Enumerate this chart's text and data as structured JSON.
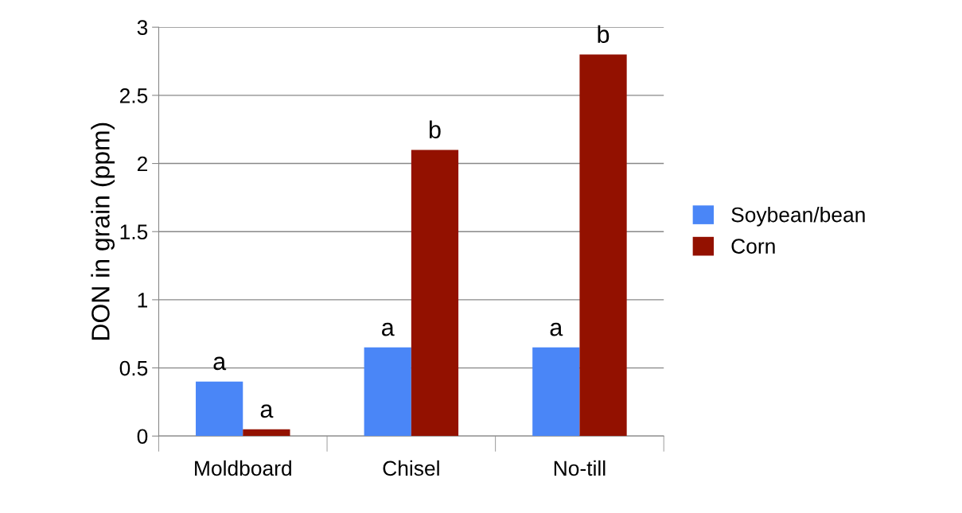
{
  "chart_data": {
    "type": "bar",
    "ylabel": "DON in grain (ppm)",
    "categories": [
      "Moldboard",
      "Chisel",
      "No-till"
    ],
    "series": [
      {
        "name": "Soybean/bean",
        "color": "#4a86f7",
        "values": [
          0.4,
          0.65,
          0.65
        ],
        "value_labels": [
          "a",
          "a",
          "a"
        ]
      },
      {
        "name": "Corn",
        "color": "#931100",
        "values": [
          0.05,
          2.1,
          2.8
        ],
        "value_labels": [
          "a",
          "b",
          "b"
        ]
      }
    ],
    "ylim": [
      0,
      3
    ],
    "yticks": [
      0,
      0.5,
      1,
      1.5,
      2,
      2.5,
      3
    ],
    "grid": "y",
    "legend": "right"
  }
}
